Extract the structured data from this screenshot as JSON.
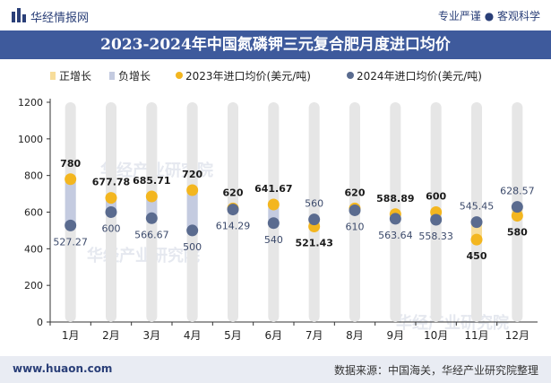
{
  "header": {
    "logo_text": "华经情报网",
    "slogan": "专业严谨 ● 客观科学",
    "title": "2023-2024年中国氮磷钾三元复合肥月度进口均价"
  },
  "footer": {
    "website": "www.huaon.com",
    "source": "数据来源：中国海关，华经产业研究院整理"
  },
  "watermark": "华经产业研究院",
  "colors": {
    "title_bg": "#3e5a9c",
    "series_2023": "#f3b61f",
    "series_2024": "#5a6b8f",
    "bar_positive": "#f7dd9a",
    "bar_negative": "#c4cbe0",
    "bar_track": "#e6e6e6"
  },
  "chart_data": {
    "type": "line",
    "title": "2023-2024年中国氮磷钾三元复合肥月度进口均价",
    "categories": [
      "1月",
      "2月",
      "3月",
      "4月",
      "5月",
      "6月",
      "7月",
      "8月",
      "9月",
      "10月",
      "11月",
      "12月"
    ],
    "legend": [
      "正增长",
      "负增长",
      "2023年进口均价(美元/吨)",
      "2024年进口均价(美元/吨)"
    ],
    "series": [
      {
        "name": "2023年进口均价(美元/吨)",
        "values": [
          780,
          677.78,
          685.71,
          720,
          620,
          641.67,
          521.43,
          620,
          588.89,
          600,
          450,
          580
        ]
      },
      {
        "name": "2024年进口均价(美元/吨)",
        "values": [
          527.27,
          600,
          566.67,
          500,
          614.29,
          540,
          560,
          610,
          563.64,
          558.33,
          545.45,
          628.57
        ]
      }
    ],
    "labels_2023": [
      "780",
      "677.78",
      "685.71",
      "720",
      "620",
      "641.67",
      "521.43",
      "620",
      "588.89",
      "600",
      "450",
      "580"
    ],
    "labels_2024": [
      "527.27",
      "600",
      "566.67",
      "500",
      "614.29",
      "540",
      "560",
      "610",
      "563.64",
      "558.33",
      "545.45",
      "628.57"
    ],
    "yticks": [
      "0",
      "200",
      "400",
      "600",
      "800",
      "1000",
      "1200"
    ],
    "ylim": [
      0,
      1200
    ],
    "xlabel": "",
    "ylabel": "",
    "legend_position": "top"
  }
}
